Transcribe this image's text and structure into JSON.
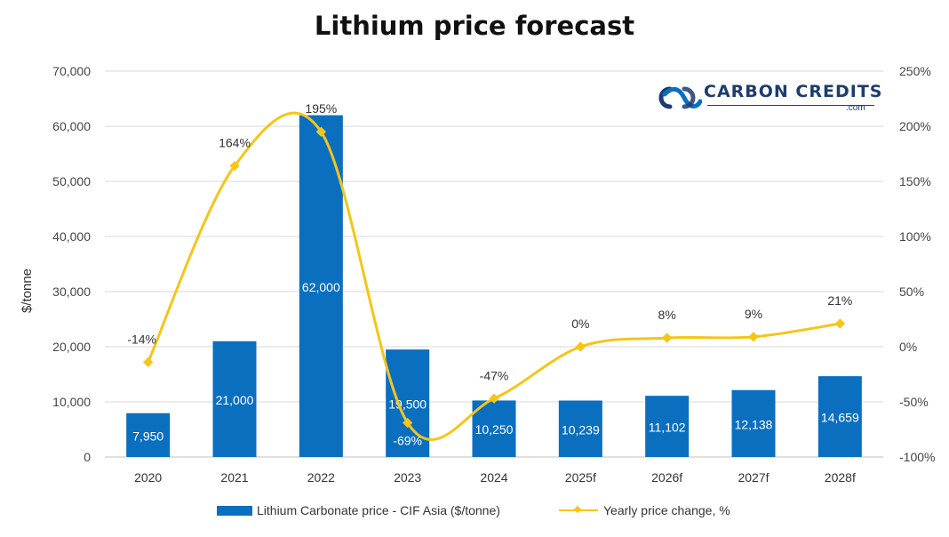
{
  "chart_data": {
    "type": "bar",
    "title": "Lithium price forecast",
    "categories": [
      "2020",
      "2021",
      "2022",
      "2023",
      "2024",
      "2025f",
      "2026f",
      "2027f",
      "2028f"
    ],
    "series": [
      {
        "name": "Lithium Carbonate price - CIF Asia ($/tonne)",
        "type": "bar",
        "axis": "left",
        "values": [
          7950,
          21000,
          62000,
          19500,
          10250,
          10239,
          11102,
          12138,
          14659
        ],
        "labels": [
          "7,950",
          "21,000",
          "62,000",
          "19,500",
          "10,250",
          "10,239",
          "11,102",
          "12,138",
          "14,659"
        ],
        "color": "#0b6fc0"
      },
      {
        "name": "Yearly price change, %",
        "type": "line",
        "axis": "right",
        "values": [
          -14,
          164,
          195,
          -69,
          -47,
          0,
          8,
          9,
          21
        ],
        "labels": [
          "-14%",
          "164%",
          "195%",
          "-69%",
          "-47%",
          "0%",
          "8%",
          "9%",
          "21%"
        ],
        "color": "#f5c518"
      }
    ],
    "ylabel": "$/tonne",
    "ylim": [
      0,
      70000
    ],
    "yticks": [
      "0",
      "10,000",
      "20,000",
      "30,000",
      "40,000",
      "50,000",
      "60,000",
      "70,000"
    ],
    "y2lim": [
      -100,
      250
    ],
    "y2ticks": [
      "-100%",
      "-50%",
      "0%",
      "50%",
      "100%",
      "150%",
      "200%",
      "250%"
    ],
    "grid": true,
    "legend": "bottom"
  },
  "logo": {
    "name": "CARBON CREDITS",
    "sub": ".com",
    "color": "#1c3c70"
  }
}
